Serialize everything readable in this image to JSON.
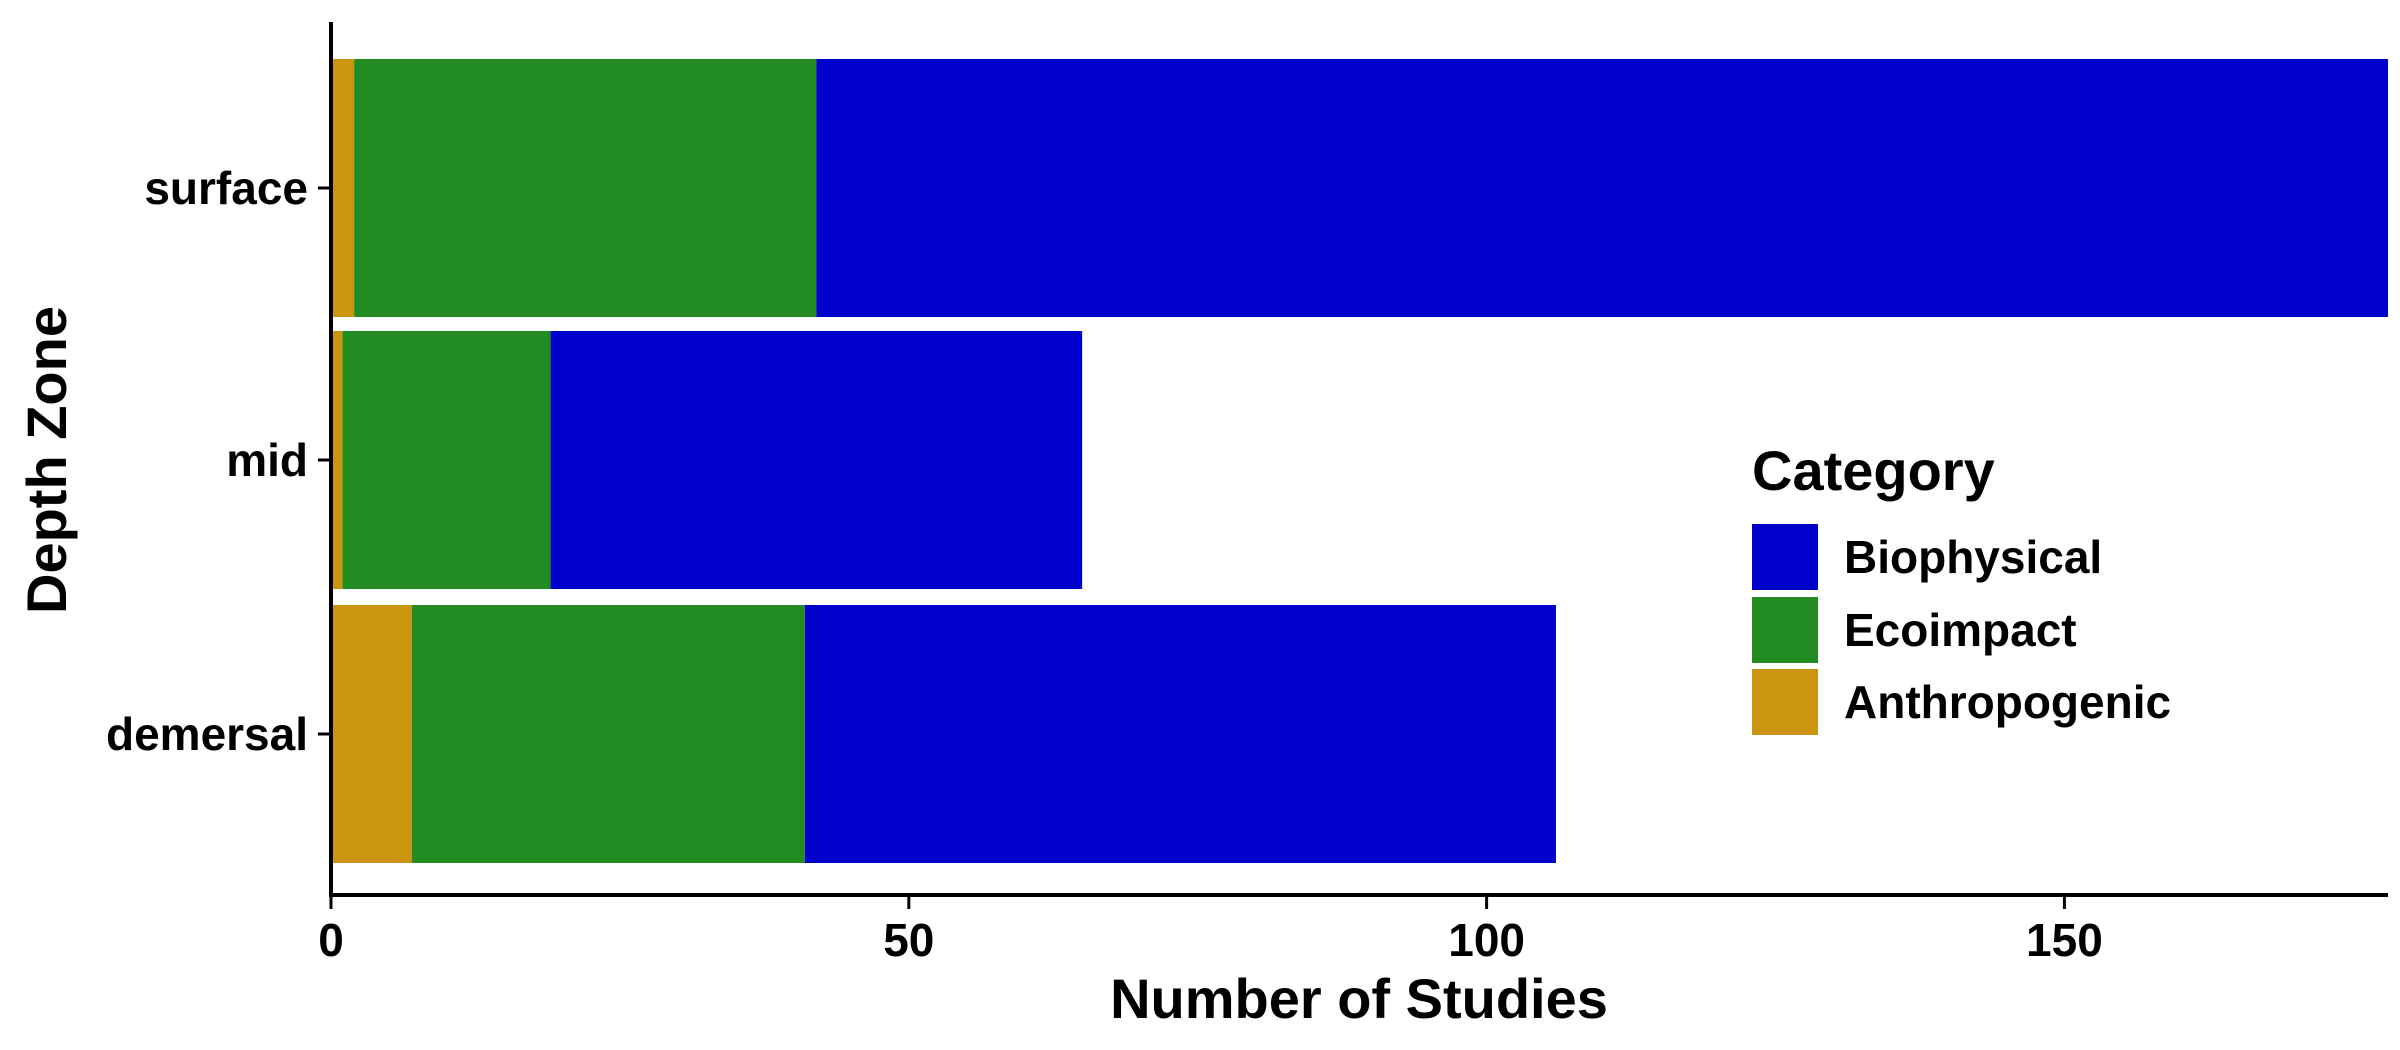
{
  "chart_data": {
    "type": "bar",
    "orientation": "horizontal",
    "stacked": true,
    "categories": [
      "surface",
      "mid",
      "demersal"
    ],
    "series": [
      {
        "name": "Anthropogenic",
        "color": "#CC9510",
        "values": [
          2,
          1,
          7
        ]
      },
      {
        "name": "Ecoimpact",
        "color": "#228B22",
        "values": [
          40,
          18,
          34
        ]
      },
      {
        "name": "Biophysical",
        "color": "#0000CD",
        "values": [
          136,
          46,
          65
        ]
      }
    ],
    "xlabel": "Number of Studies",
    "ylabel": "Depth Zone",
    "xlim": [
      0,
      178
    ],
    "xticks": [
      0,
      50,
      100,
      150
    ],
    "grid": false,
    "legend": {
      "title": "Category",
      "position": "right",
      "order": [
        "Biophysical",
        "Ecoimpact",
        "Anthropogenic"
      ]
    }
  }
}
